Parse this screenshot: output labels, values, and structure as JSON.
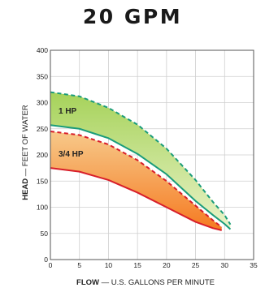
{
  "title": "20 GPM",
  "chart_data": {
    "type": "area",
    "title": "20 GPM",
    "xlabel_bold": "FLOW",
    "xlabel_rest": " — U.S. GALLONS PER MINUTE",
    "ylabel_bold": "HEAD",
    "ylabel_rest": " — FEET OF WATER",
    "xlim": [
      0,
      35
    ],
    "ylim": [
      0,
      400
    ],
    "x_ticks": [
      0,
      5,
      10,
      15,
      20,
      25,
      30,
      35
    ],
    "y_ticks": [
      0,
      50,
      100,
      150,
      200,
      250,
      300,
      350,
      400
    ],
    "grid": true,
    "bands": [
      {
        "name": "1 HP",
        "fill_top": "#a6d25a",
        "fill_bottom": "#e9f3c8",
        "color": "#1a9c7a",
        "upper": {
          "x": [
            0,
            5,
            10,
            15,
            20,
            25,
            28,
            30,
            31
          ],
          "y": [
            320,
            312,
            290,
            258,
            212,
            152,
            110,
            85,
            67
          ]
        },
        "lower": {
          "x": [
            0,
            5,
            10,
            15,
            20,
            25,
            28,
            30,
            31
          ],
          "y": [
            257,
            250,
            232,
            202,
            163,
            112,
            85,
            68,
            58
          ]
        }
      },
      {
        "name": "3/4 HP",
        "fill_top": "#f7c98a",
        "fill_bottom": "#f57a21",
        "color": "#d81e2a",
        "upper": {
          "x": [
            0,
            5,
            10,
            15,
            20,
            25,
            28,
            29.5
          ],
          "y": [
            245,
            238,
            220,
            190,
            150,
            103,
            75,
            62
          ]
        },
        "lower": {
          "x": [
            0,
            5,
            10,
            15,
            20,
            25,
            28,
            29.5
          ],
          "y": [
            175,
            168,
            152,
            128,
            100,
            72,
            60,
            56
          ]
        }
      }
    ]
  }
}
